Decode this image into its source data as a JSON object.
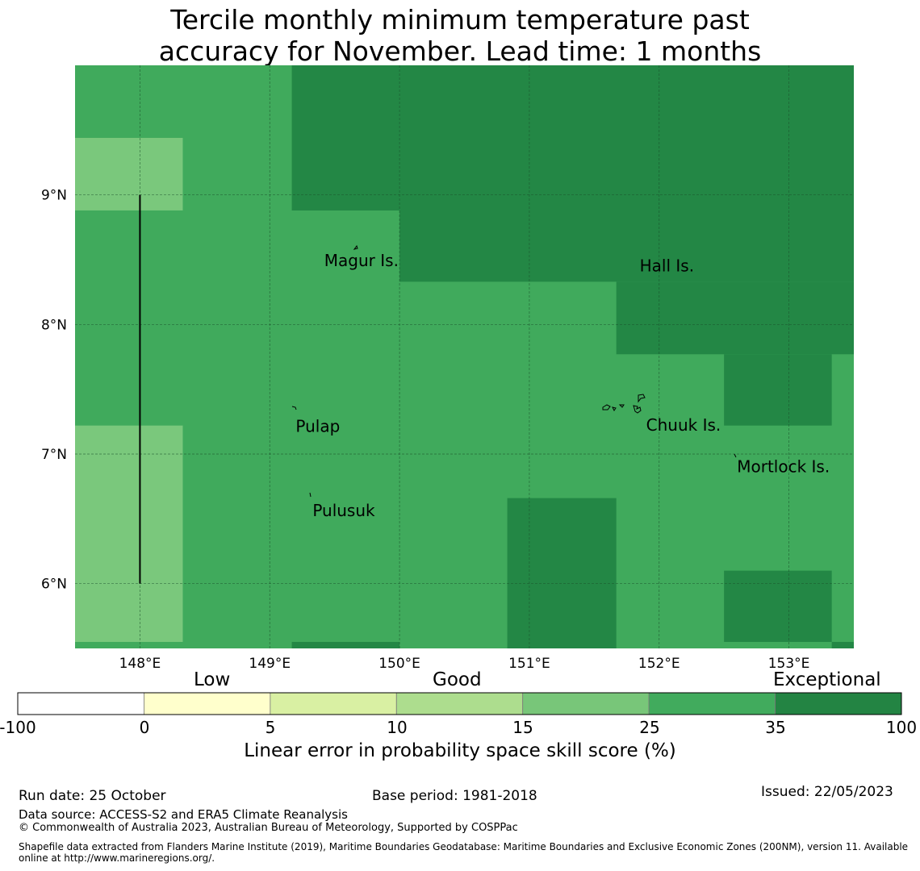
{
  "title_line1": "Tercile monthly minimum temperature past",
  "title_line2": "accuracy for November. Lead time: 1 months",
  "colors": {
    "c1": "#7ac87c",
    "c2": "#40aa5c",
    "c3": "#238745",
    "grid": "#1a4d2a"
  },
  "map": {
    "lat_range": [
      5.5,
      10.0
    ],
    "lon_range": [
      147.5,
      153.5
    ],
    "lat_ticks": [
      {
        "value": 9,
        "label": "9°N"
      },
      {
        "value": 8,
        "label": "8°N"
      },
      {
        "value": 7,
        "label": "7°N"
      },
      {
        "value": 6,
        "label": "6°N"
      }
    ],
    "lon_ticks": [
      {
        "value": 148,
        "label": "148°E"
      },
      {
        "value": 149,
        "label": "149°E"
      },
      {
        "value": 150,
        "label": "150°E"
      },
      {
        "value": 151,
        "label": "151°E"
      },
      {
        "value": 152,
        "label": "152°E"
      },
      {
        "value": 153,
        "label": "153°E"
      }
    ],
    "cells": [
      {
        "lon0": 147.5,
        "lon1": 148.33,
        "lat0": 8.88,
        "lat1": 9.44,
        "cls": 1
      },
      {
        "lon0": 147.5,
        "lon1": 148.33,
        "lat0": 5.55,
        "lat1": 7.22,
        "cls": 1
      },
      {
        "lon0": 149.17,
        "lon1": 150.0,
        "lat0": 8.88,
        "lat1": 10.0,
        "cls": 3
      },
      {
        "lon0": 150.0,
        "lon1": 153.5,
        "lat0": 8.33,
        "lat1": 10.0,
        "cls": 3
      },
      {
        "lon0": 151.67,
        "lon1": 153.5,
        "lat0": 7.77,
        "lat1": 8.33,
        "cls": 3
      },
      {
        "lon0": 152.5,
        "lon1": 153.33,
        "lat0": 7.22,
        "lat1": 7.77,
        "cls": 3
      },
      {
        "lon0": 150.83,
        "lon1": 151.67,
        "lat0": 5.5,
        "lat1": 6.66,
        "cls": 3
      },
      {
        "lon0": 152.5,
        "lon1": 153.33,
        "lat0": 5.55,
        "lat1": 6.1,
        "cls": 3
      },
      {
        "lon0": 149.17,
        "lon1": 150.0,
        "lat0": 5.5,
        "lat1": 5.55,
        "cls": 3
      },
      {
        "lon0": 153.33,
        "lon1": 153.5,
        "lat0": 5.5,
        "lat1": 5.55,
        "cls": 3
      }
    ],
    "places": [
      {
        "name": "Magur Is.",
        "lon": 149.42,
        "lat": 8.5
      },
      {
        "name": "Hall Is.",
        "lon": 151.85,
        "lat": 8.46
      },
      {
        "name": "Pulap",
        "lon": 149.2,
        "lat": 7.22
      },
      {
        "name": "Chuuk Is.",
        "lon": 151.9,
        "lat": 7.23
      },
      {
        "name": "Mortlock Is.",
        "lon": 152.6,
        "lat": 6.91
      },
      {
        "name": "Pulusuk",
        "lon": 149.33,
        "lat": 6.57
      }
    ],
    "boundary_line": {
      "lon": 148.0,
      "lat0": 6.0,
      "lat1": 9.0
    }
  },
  "colorbar": {
    "headers": [
      "Low",
      "Good",
      "Exceptional"
    ],
    "tick_labels": [
      "-100",
      "0",
      "5",
      "10",
      "15",
      "25",
      "35",
      "100"
    ],
    "bin_colors": [
      "#ffffff",
      "#ffffcc",
      "#d9f0a3",
      "#addd8e",
      "#78c679",
      "#41ab5d",
      "#238443"
    ],
    "label": "Linear error in probability space skill score (%)"
  },
  "footer": {
    "run_date": "Run date: 25 October",
    "base_period": "Base period: 1981-2018",
    "issued": "Issued: 22/05/2023",
    "data_source": "Data source: ACCESS-S2 and ERA5 Climate Reanalysis",
    "copyright": "© Commonwealth of Australia 2023, Australian Bureau of Meteorology, Supported by COSPPac",
    "shapefile_line1": "Shapefile data extracted from Flanders Marine Institute (2019), Maritime Boundaries Geodatabase: Maritime Boundaries and Exclusive Economic Zones (200NM), version 11. Available",
    "shapefile_line2": "online at http://www.marineregions.org/."
  }
}
